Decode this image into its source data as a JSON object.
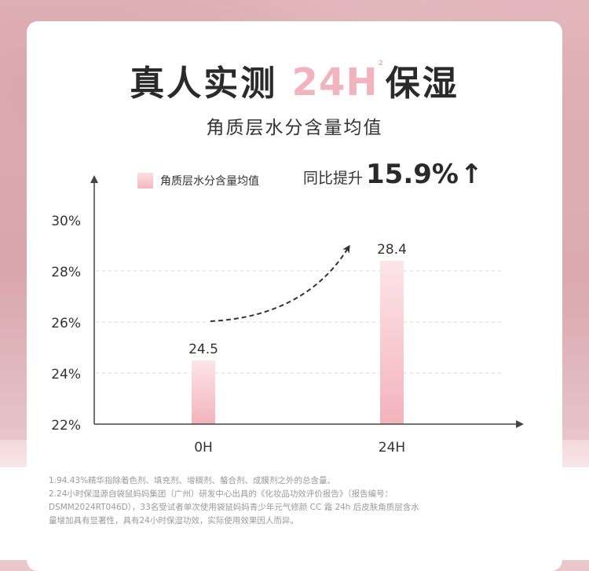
{
  "header": {
    "title_prefix": "真人实测",
    "title_highlight": "24H",
    "title_mark": "2",
    "title_suffix": "保湿",
    "subtitle": "角质层水分含量均值"
  },
  "legend": {
    "label": "角质层水分含量均值"
  },
  "growth": {
    "label": "同比提升",
    "value": "15.9%",
    "arrow": "↑"
  },
  "chart_data": {
    "type": "bar",
    "categories": [
      "0H",
      "24H"
    ],
    "values": [
      24.5,
      28.4
    ],
    "data_labels": [
      "24.5",
      "28.4"
    ],
    "y_ticks": [
      22,
      24,
      26,
      28,
      30
    ],
    "y_tick_labels": [
      "22%",
      "24%",
      "26%",
      "28%",
      "30%"
    ],
    "ylim": [
      22,
      30
    ],
    "gridlines": [
      24,
      26,
      28
    ],
    "legend_position": "top-left",
    "colors": {
      "bar_top": "#fde5e8",
      "bar_bottom": "#f3b3bb",
      "axis": "#444444",
      "grid": "#d8d8d8"
    }
  },
  "footnotes": [
    "1.94.43%精华指除着色剂、填充剂、增稠剂、螯合剂、成膜剂之外的总含量。",
    "2.24小时保湿源自袋鼠妈妈集团（广州）研发中心出具的《化妆品功效评价报告》（报告编号：",
    "DSMM2024RT046D），33名受试者单次使用袋鼠妈妈青少年元气修颜 CC 霜 24h 后皮肤角质层含水",
    "量增加具有显著性，具有24小时保湿功效，实际使用效果因人而异。"
  ]
}
